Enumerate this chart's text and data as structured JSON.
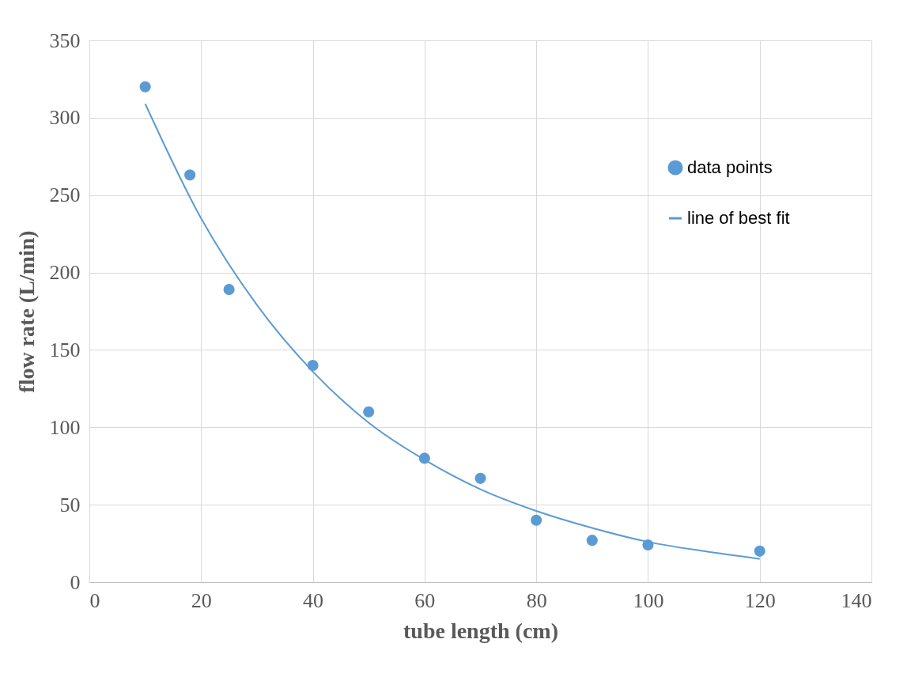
{
  "chart_data": {
    "type": "scatter",
    "xlabel": "tube length (cm)",
    "ylabel": "flow rate (L/min)",
    "xlim": [
      0,
      140
    ],
    "xticks": [
      0,
      20,
      40,
      60,
      80,
      100,
      120,
      140
    ],
    "ylim": [
      0,
      350
    ],
    "yticks": [
      0,
      50,
      100,
      150,
      200,
      250,
      300,
      350
    ],
    "grid": true,
    "legend": "right",
    "series": [
      {
        "name": "data points",
        "color": "#5b9bd5",
        "marker": "circle",
        "x": [
          10,
          18,
          25,
          40,
          50,
          60,
          70,
          80,
          90,
          100,
          120
        ],
        "values": [
          320,
          263,
          189,
          140,
          110,
          80,
          67,
          40,
          27,
          24,
          20
        ]
      },
      {
        "name": "line of best fit",
        "type": "line",
        "color": "#5b9bd5",
        "marker": "none",
        "line_style": "solid",
        "x": [
          10,
          20,
          30,
          40,
          50,
          60,
          70,
          80,
          90,
          100,
          110,
          120
        ],
        "values": [
          309,
          235,
          179,
          136,
          103,
          79,
          60,
          46,
          35,
          26,
          20,
          15
        ]
      }
    ]
  }
}
